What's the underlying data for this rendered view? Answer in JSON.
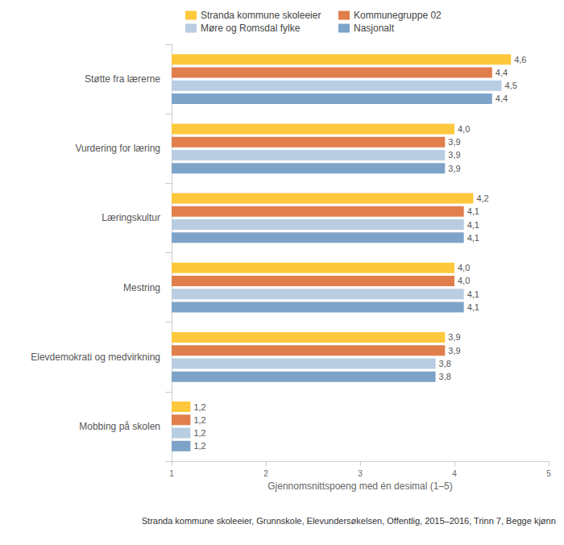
{
  "chart_data": {
    "type": "bar",
    "orientation": "horizontal",
    "categories": [
      "Støtte fra lærerne",
      "Vurdering for læring",
      "Læringskultur",
      "Mestring",
      "Elevdemokrati og medvirkning",
      "Mobbing på skolen"
    ],
    "series": [
      {
        "name": "Stranda kommune skoleeier",
        "color": "#fdc83b",
        "values": [
          4.6,
          4.0,
          4.2,
          4.0,
          3.9,
          1.2
        ],
        "value_labels": [
          "4,6",
          "4,0",
          "4,2",
          "4,0",
          "3,9",
          "1,2"
        ]
      },
      {
        "name": "Kommunegruppe 02",
        "color": "#e07e4c",
        "values": [
          4.4,
          3.9,
          4.1,
          4.0,
          3.9,
          1.2
        ],
        "value_labels": [
          "4,4",
          "3,9",
          "4,1",
          "4,0",
          "3,9",
          "1,2"
        ]
      },
      {
        "name": "Møre og Romsdal fylke",
        "color": "#b9cde2",
        "values": [
          4.5,
          3.9,
          4.1,
          4.1,
          3.8,
          1.2
        ],
        "value_labels": [
          "4,5",
          "3,9",
          "4,1",
          "4,1",
          "3,8",
          "1,2"
        ]
      },
      {
        "name": "Nasjonalt",
        "color": "#7ea3c8",
        "values": [
          4.4,
          3.9,
          4.1,
          4.1,
          3.8,
          1.2
        ],
        "value_labels": [
          "4,4",
          "3,9",
          "4,1",
          "4,1",
          "3,8",
          "1,2"
        ]
      }
    ],
    "xlabel": "Gjennomsnittspoeng med én desimal (1–5)",
    "source": "Stranda kommune skoleeier, Grunnskole, Elevundersøkelsen, Offentlig, 2015–2016, Trinn 7, Begge kjønn",
    "xlim": [
      1,
      5
    ],
    "xticks": [
      1,
      2,
      3,
      4,
      5
    ],
    "grid": false,
    "legend": "top",
    "data_labels": true
  }
}
